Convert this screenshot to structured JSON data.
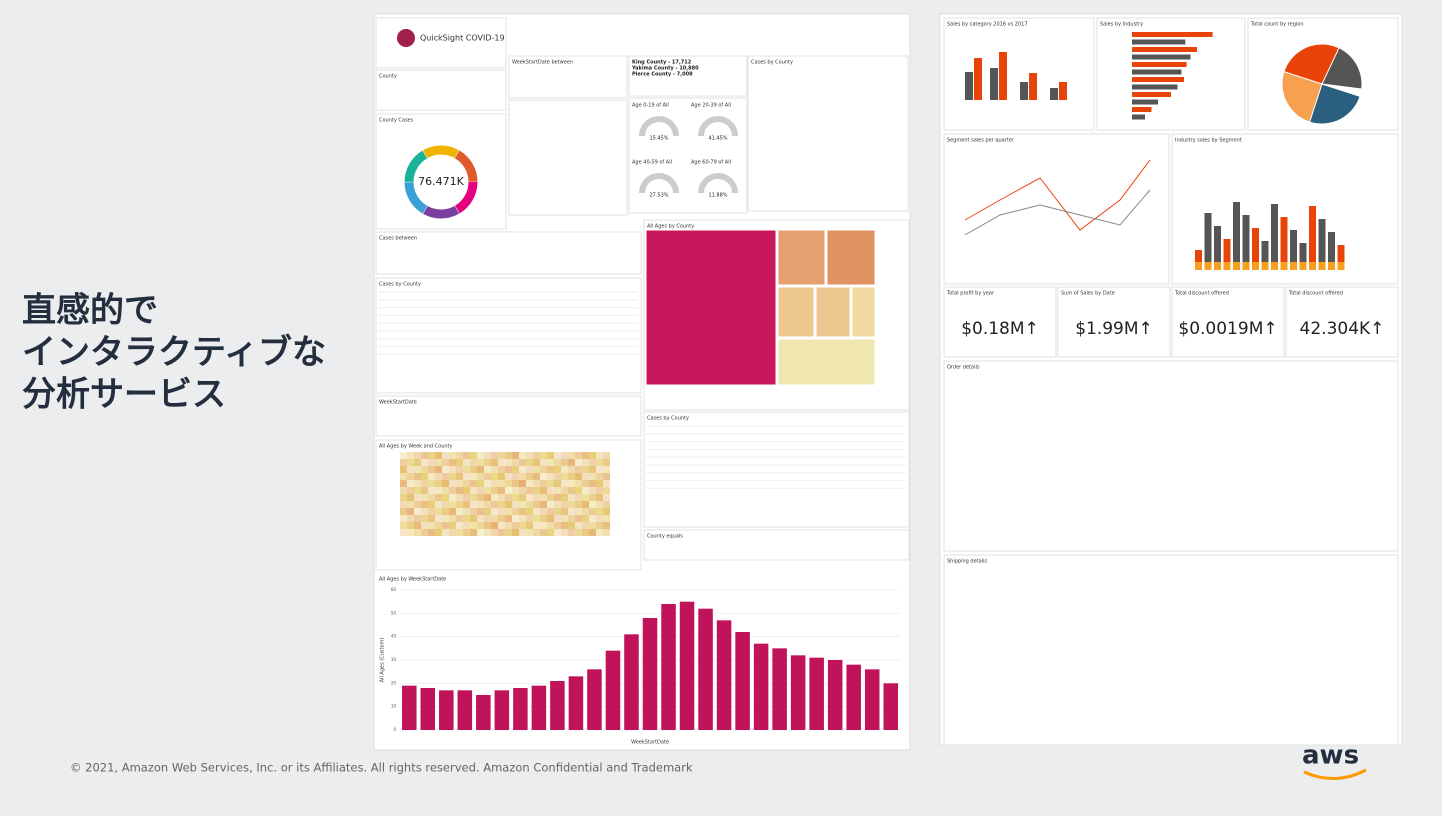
{
  "headline": [
    "直感的で",
    "インタラクティブな",
    "分析サービス"
  ],
  "footer": "© 2021, Amazon Web Services, Inc. or its Affiliates. All rights reserved. Amazon Confidential and Trademark",
  "logo": "aws",
  "covid": {
    "brand": "QuickSight COVID-19",
    "panels": [
      "County",
      "County Cases",
      "WeekStartDate between",
      "Cases by County",
      "Cases between",
      "Cases by County",
      "WeekStartDate",
      "All Ages by Week and County",
      "All Ages by County",
      "Cases by County",
      "County equals"
    ],
    "donut_total": "76.471K",
    "county_lines": [
      "King County - 17,712",
      "Yakima County - 10,880",
      "Pierce County - 7,008"
    ],
    "gauges": [
      {
        "title": "Age 0-19 of All",
        "value": "15.45%"
      },
      {
        "title": "Age 20-39 of All",
        "value": "41.45%"
      },
      {
        "title": "Age 40-59 of All",
        "value": "27.53%"
      },
      {
        "title": "Age 60-79 of All",
        "value": "11.88%"
      }
    ],
    "weekly": {
      "title": "All Ages by WeekStartDate",
      "x_label": "WeekStartDate",
      "y_label": "All Ages (Custom)",
      "ylim": [
        0,
        60
      ],
      "yticks": [
        0,
        10,
        20,
        30,
        40,
        50,
        60
      ],
      "values": [
        19,
        18,
        17,
        17,
        15,
        17,
        18,
        19,
        21,
        23,
        26,
        34,
        41,
        48,
        54,
        55,
        52,
        47,
        42,
        37,
        35,
        32,
        31,
        30,
        28,
        26,
        20
      ]
    }
  },
  "sales": {
    "panels": [
      "Sales by category 2016 vs 2017",
      "Sales by Industry",
      "Total count by region",
      "Segment sales per quarter",
      "Industry sales by Segment",
      "Order details",
      "Shipping details"
    ],
    "kpis": [
      {
        "title": "Total profit by year",
        "value": "$0.18M↑"
      },
      {
        "title": "Sum of Sales by Date",
        "value": "$1.99M↑"
      },
      {
        "title": "Total discount offered",
        "value": "$0.0019M↑"
      },
      {
        "title": "Total discount offered",
        "value": "42.304K↑"
      }
    ],
    "industry": {
      "values": [
        62,
        41,
        50,
        45,
        42,
        38,
        40,
        35,
        30,
        20,
        15,
        10
      ],
      "color": "#e8440a"
    }
  }
}
